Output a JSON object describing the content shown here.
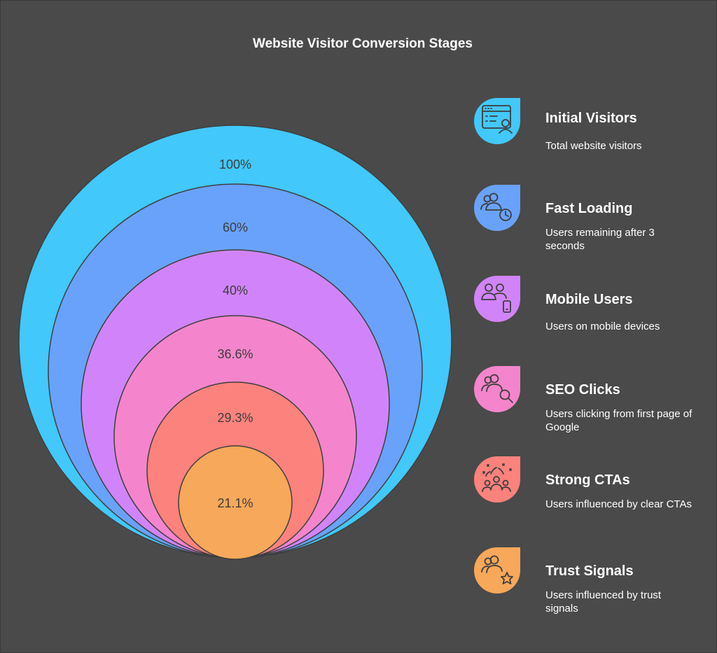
{
  "title": "Website Visitor Conversion Stages",
  "stages": [
    {
      "name": "Initial Visitors",
      "description": "Total website visitors",
      "value_label": "100%",
      "color": "#42c8fb",
      "icon": "browser-user-icon"
    },
    {
      "name": "Fast Loading",
      "description": "Users remaining after 3 seconds",
      "value_label": "60%",
      "color": "#69a2fb",
      "icon": "users-clock-icon"
    },
    {
      "name": "Mobile Users",
      "description": "Users on mobile devices",
      "value_label": "40%",
      "color": "#d184f9",
      "icon": "users-mobile-icon"
    },
    {
      "name": "SEO Clicks",
      "description": "Users clicking from first page of Google",
      "value_label": "36.6%",
      "color": "#f485cc",
      "icon": "users-search-icon"
    },
    {
      "name": "Strong CTAs",
      "description": "Users influenced by clear CTAs",
      "value_label": "29.3%",
      "color": "#fc827d",
      "icon": "crowd-celebration-icon"
    },
    {
      "name": "Trust Signals",
      "description": "Users influenced by trust signals",
      "value_label": "21.1%",
      "color": "#f7a85a",
      "icon": "users-star-icon"
    }
  ]
}
